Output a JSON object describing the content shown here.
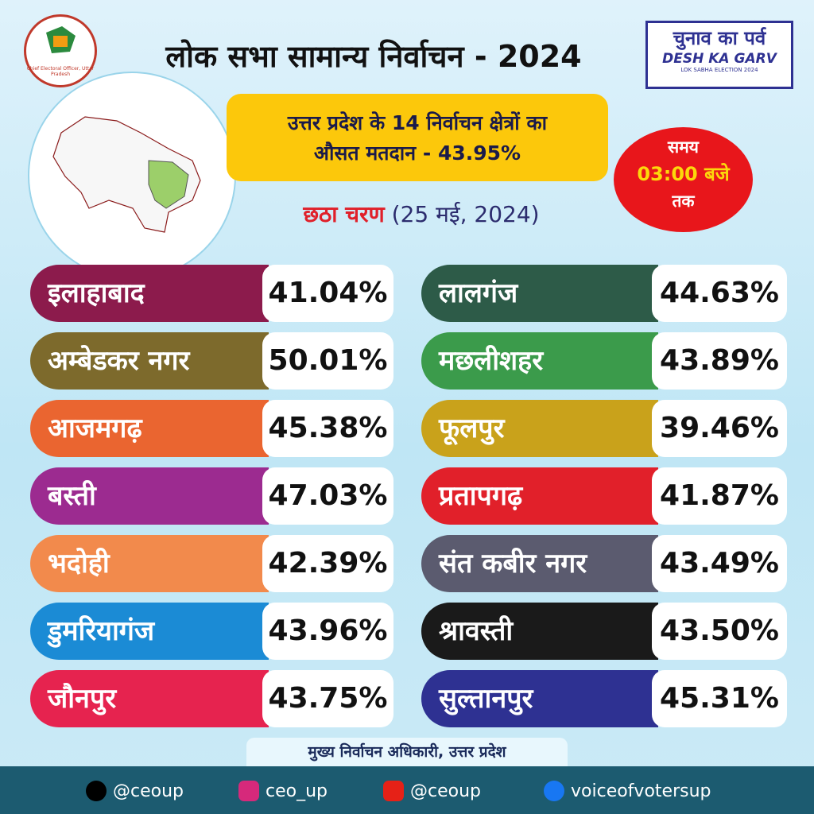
{
  "header": {
    "title": "लोक सभा सामान्य निर्वाचन - 2024",
    "logo_text": "Chief Electoral Officer, Uttar Pradesh"
  },
  "campaign_logo": {
    "hindi": "चुनाव का पर्व",
    "english": "DESH KA GARV",
    "tagline": "LOK SABHA ELECTION 2024"
  },
  "summary": {
    "line1": "उत्तर प्रदेश के 14 निर्वाचन क्षेत्रों का",
    "line2": "औसत मतदान - 43.95%"
  },
  "phase": {
    "name": "छठा चरण",
    "date": "(25 मई, 2024)"
  },
  "time": {
    "label": "समय",
    "value": "03:00 बजे",
    "suffix": "तक"
  },
  "constituencies": {
    "left": [
      {
        "name": "इलाहाबाद",
        "turnout": "41.04%",
        "color": "#8c1b4c"
      },
      {
        "name": "अम्बेडकर नगर",
        "turnout": "50.01%",
        "color": "#7d6a2c"
      },
      {
        "name": "आजमगढ़",
        "turnout": "45.38%",
        "color": "#ea6530"
      },
      {
        "name": "बस्ती",
        "turnout": "47.03%",
        "color": "#9c2b90"
      },
      {
        "name": "भदोही",
        "turnout": "42.39%",
        "color": "#f28a4c"
      },
      {
        "name": "डुमरियागंज",
        "turnout": "43.96%",
        "color": "#1b8bd5"
      },
      {
        "name": "जौनपुर",
        "turnout": "43.75%",
        "color": "#e6234f"
      }
    ],
    "right": [
      {
        "name": "लालगंज",
        "turnout": "44.63%",
        "color": "#2d5b48"
      },
      {
        "name": "मछलीशहर",
        "turnout": "43.89%",
        "color": "#3b9b4b"
      },
      {
        "name": "फूलपुर",
        "turnout": "39.46%",
        "color": "#c9a21b"
      },
      {
        "name": "प्रतापगढ़",
        "turnout": "41.87%",
        "color": "#e1202a"
      },
      {
        "name": "संत कबीर नगर",
        "turnout": "43.49%",
        "color": "#5b5b6f"
      },
      {
        "name": "श्रावस्ती",
        "turnout": "43.50%",
        "color": "#1a1a1a"
      },
      {
        "name": "सुल्तानपुर",
        "turnout": "45.31%",
        "color": "#2e3192"
      }
    ]
  },
  "footer": {
    "authority": "मुख्य निर्वाचन अधिकारी, उत्तर प्रदेश",
    "social": [
      "@ceoup",
      "ceo_up",
      "@ceoup",
      "voiceofvotersup"
    ]
  }
}
